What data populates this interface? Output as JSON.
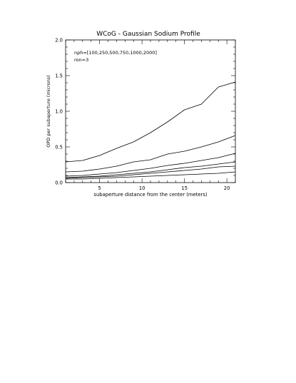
{
  "chart_data": {
    "type": "line",
    "title": "WCoG - Gaussian Sodium Profile",
    "xlabel": "subaperture distance from the center (meters)",
    "ylabel": "OPD per subaperture (microns)",
    "xlim": [
      1,
      21
    ],
    "ylim": [
      0.0,
      2.0
    ],
    "xticks": [
      5,
      10,
      15,
      20
    ],
    "yticks": [
      0.0,
      0.5,
      1.0,
      1.5,
      2.0
    ],
    "ytick_labels": [
      "0.0",
      "0.5",
      "1.0",
      "1.5",
      "2.0"
    ],
    "grid": false,
    "annotations": [
      "nph=[100,250,500,750,1000,2000]",
      "ron=3"
    ],
    "x": [
      1,
      3,
      5,
      7,
      9,
      11,
      13,
      15,
      17,
      19,
      21
    ],
    "series": [
      {
        "values": [
          0.29,
          0.31,
          0.38,
          0.48,
          0.57,
          0.7,
          0.85,
          1.02,
          1.1,
          1.34,
          1.41
        ]
      },
      {
        "values": [
          0.15,
          0.16,
          0.19,
          0.23,
          0.29,
          0.32,
          0.4,
          0.44,
          0.5,
          0.57,
          0.66
        ]
      },
      {
        "values": [
          0.09,
          0.1,
          0.12,
          0.14,
          0.17,
          0.2,
          0.24,
          0.27,
          0.31,
          0.35,
          0.41
        ]
      },
      {
        "values": [
          0.07,
          0.08,
          0.09,
          0.11,
          0.13,
          0.15,
          0.18,
          0.21,
          0.23,
          0.26,
          0.29
        ]
      },
      {
        "values": [
          0.06,
          0.07,
          0.08,
          0.09,
          0.11,
          0.13,
          0.15,
          0.17,
          0.19,
          0.22,
          0.23
        ]
      },
      {
        "values": [
          0.05,
          0.05,
          0.06,
          0.07,
          0.08,
          0.09,
          0.1,
          0.11,
          0.12,
          0.13,
          0.15
        ]
      }
    ]
  }
}
